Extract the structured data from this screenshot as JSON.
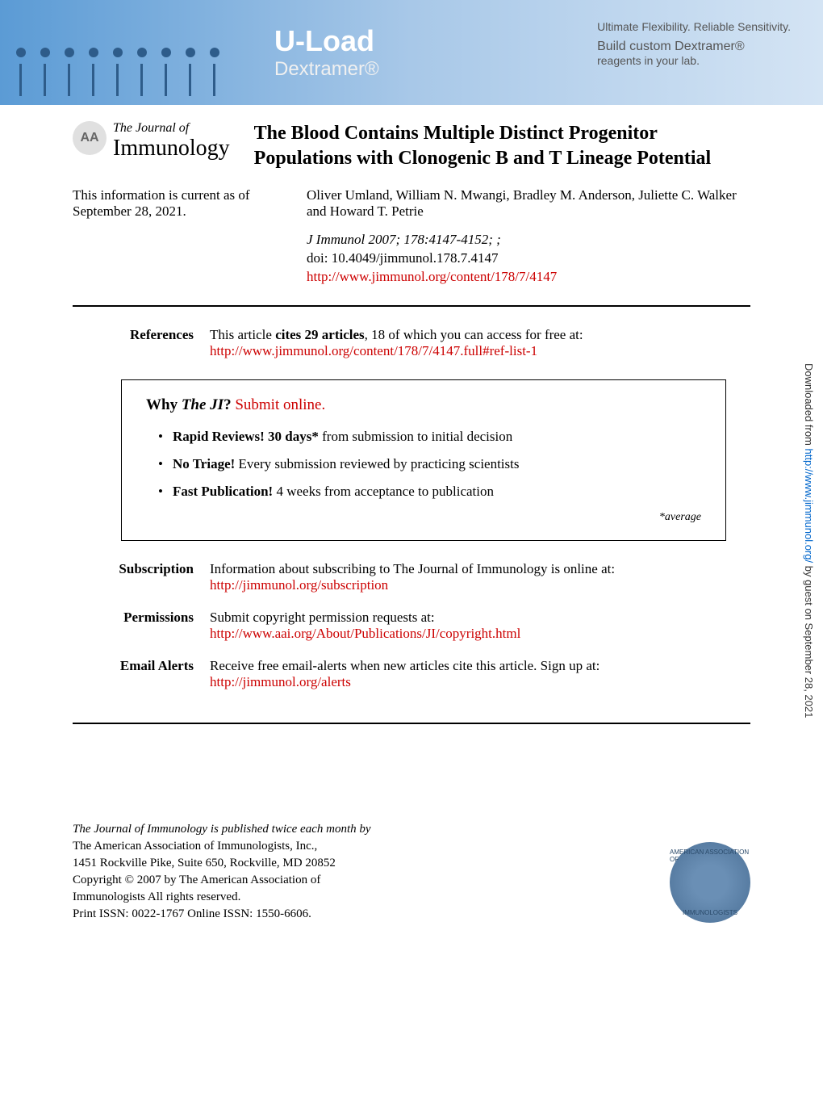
{
  "banner": {
    "title": "U-Load",
    "subtitle": "Dextramer®",
    "tagline": "Ultimate Flexibility. Reliable Sensitivity.",
    "brand": "Build custom Dextramer®",
    "brand_sub": "reagents in your lab.",
    "bg_gradient_start": "#5b9bd5",
    "bg_gradient_end": "#d4e4f4"
  },
  "journal": {
    "logo_text": "AA",
    "name_top": "The Journal of",
    "name_bottom": "Immunology"
  },
  "article": {
    "title": "The Blood Contains Multiple Distinct Progenitor Populations with Clonogenic B and T Lineage Potential",
    "current_info": "This information is current as of September 28, 2021.",
    "authors": "Oliver Umland, William N. Mwangi, Bradley M. Anderson, Juliette C. Walker and Howard T. Petrie",
    "journal_ref": "J Immunol 2007; 178:4147-4152; ;",
    "doi": "doi: 10.4049/jimmunol.178.7.4147",
    "url": "http://www.jimmunol.org/content/178/7/4147"
  },
  "references": {
    "label": "References",
    "text_prefix": "This article ",
    "text_bold": "cites 29 articles",
    "text_suffix": ", 18 of which you can access for free at:",
    "url": "http://www.jimmunol.org/content/178/7/4147.full#ref-list-1"
  },
  "why_box": {
    "title_bold": "Why ",
    "title_italic": "The JI",
    "title_q": "? ",
    "title_link": "Submit online.",
    "items": [
      {
        "bold": "Rapid Reviews! 30 days*",
        "rest": " from submission to initial decision"
      },
      {
        "bold": "No Triage!",
        "rest": " Every submission reviewed by practicing scientists"
      },
      {
        "bold": "Fast Publication!",
        "rest": " 4 weeks from acceptance to publication"
      }
    ],
    "average": "*average"
  },
  "sections": {
    "subscription": {
      "label": "Subscription",
      "text": "Information about subscribing to The Journal of Immunology is online at:",
      "url": "http://jimmunol.org/subscription"
    },
    "permissions": {
      "label": "Permissions",
      "text": "Submit copyright permission requests at:",
      "url": "http://www.aai.org/About/Publications/JI/copyright.html"
    },
    "email_alerts": {
      "label": "Email Alerts",
      "text": "Receive free email-alerts when new articles cite this article. Sign up at:",
      "url": "http://jimmunol.org/alerts"
    }
  },
  "side_text": {
    "prefix": "Downloaded from ",
    "link": "http://www.jimmunol.org/",
    "suffix": " by guest on September 28, 2021"
  },
  "footer": {
    "lines": [
      "The Journal of Immunology is published twice each month by",
      "The American Association of Immunologists, Inc.,",
      "1451 Rockville Pike, Suite 650, Rockville, MD 20852",
      "Copyright © 2007 by The American Association of",
      "Immunologists All rights reserved.",
      "Print ISSN: 0022-1767 Online ISSN: 1550-6606."
    ],
    "logo_top": "AMERICAN ASSOCIATION OF",
    "logo_bottom": "IMMUNOLOGISTS"
  },
  "colors": {
    "link_red": "#cc0000",
    "link_blue": "#0066cc",
    "text_black": "#000000"
  }
}
